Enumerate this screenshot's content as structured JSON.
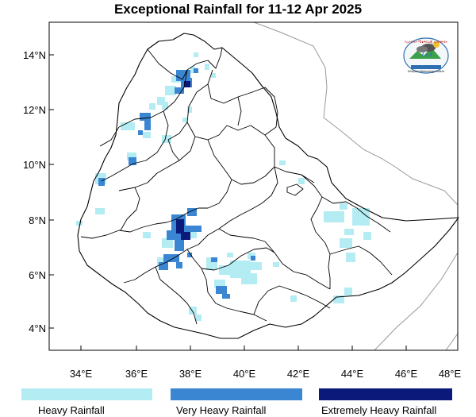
{
  "title": "Exceptional Rainfall for 11-12 Apr 2025",
  "axes": {
    "lat_ticks": [
      "14°N",
      "12°N",
      "10°N",
      "8°N",
      "6°N",
      "4°N"
    ],
    "lon_ticks": [
      "34°E",
      "36°E",
      "38°E",
      "40°E",
      "42°E",
      "44°E",
      "46°E",
      "48°E"
    ]
  },
  "legend": [
    {
      "label": "Heavy Rainfall",
      "color": "#b3ecf2"
    },
    {
      "label": "Very Heavy Rainfall",
      "color": "#3a86d3"
    },
    {
      "label": "Extremely Heavy Rainfall",
      "color": "#0b1a7a"
    }
  ],
  "colors": {
    "heavy": "#b3ecf2",
    "very_heavy": "#3a86d3",
    "extreme": "#0b1a7a",
    "boundary": "#000000",
    "neighbor_border": "#999999"
  },
  "logo": {
    "text_top": "የኢትዮጵያ ሜቴዎሮሎጂ ኢንስቲትዩት",
    "text_bottom": "Ethiopian Meteorology Institute",
    "icon": "weather-cloud-logo-icon"
  },
  "map": {
    "country": "Ethiopia",
    "grid_lines": false
  }
}
